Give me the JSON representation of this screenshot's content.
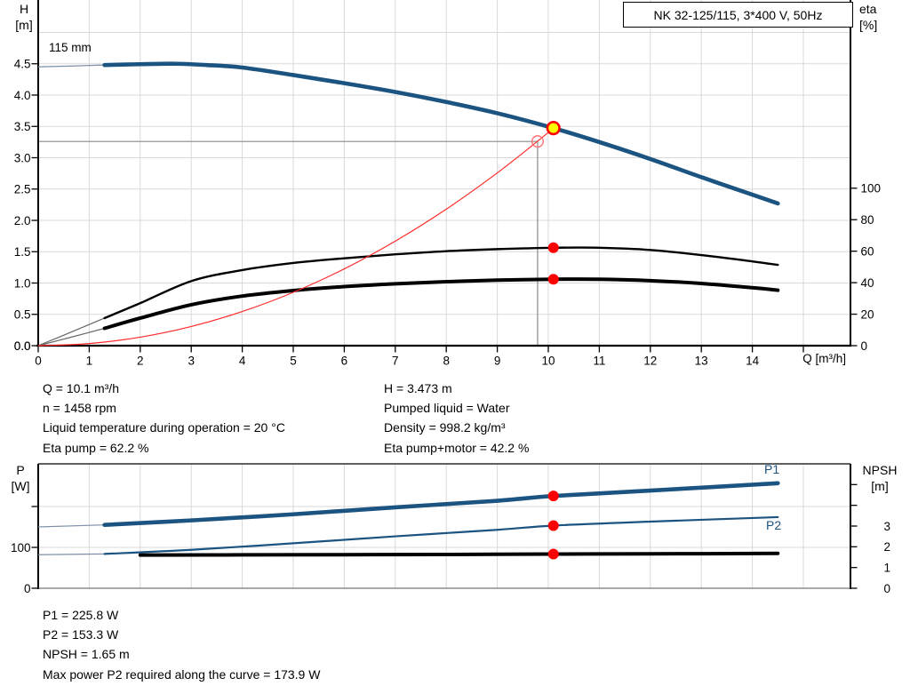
{
  "colors": {
    "curve_blue": "#1b5381",
    "thin_blue": "#7d90a8",
    "curve_black": "#000000",
    "thin_black": "#666666",
    "system_red": "#ff2a2a",
    "marker_red": "#ff0000",
    "duty_yellow": "#ffff00",
    "grid": "#d9d9d9",
    "axis": "#000000",
    "crosshair_gray": "#8a8a8a"
  },
  "operating_point_info": {
    "left": [
      "Q = 10.1 m³/h",
      "n = 1458 rpm",
      "Liquid temperature during operation = 20 °C",
      "Eta pump = 62.2 %"
    ],
    "right": [
      "H = 3.473 m",
      "Pumped liquid = Water",
      "Density = 998.2 kg/m³",
      "Eta pump+motor = 42.2 %"
    ]
  },
  "power_info": [
    "P1 = 225.8 W",
    "P2 = 153.3 W",
    "NPSH = 1.65 m",
    "Max power P2 required along the curve = 173.9 W"
  ],
  "chart_data": [
    {
      "id": "qh-eta-chart",
      "type": "line",
      "title": "NK 32-125/115, 3*400 V, 50Hz",
      "xlabel": "Q [m³/h]",
      "x_ticks": [
        {
          "v": 0,
          "label": "0"
        },
        {
          "v": 1,
          "label": "1"
        },
        {
          "v": 2,
          "label": "2"
        },
        {
          "v": 3,
          "label": "3"
        },
        {
          "v": 4,
          "label": "4"
        },
        {
          "v": 5,
          "label": "5"
        },
        {
          "v": 6,
          "label": "6"
        },
        {
          "v": 7,
          "label": "7"
        },
        {
          "v": 8,
          "label": "8"
        },
        {
          "v": 9,
          "label": "9"
        },
        {
          "v": 10,
          "label": "10"
        },
        {
          "v": 11,
          "label": "11"
        },
        {
          "v": 12,
          "label": "12"
        },
        {
          "v": 13,
          "label": "13"
        },
        {
          "v": 14,
          "label": "14"
        },
        {
          "v": 15,
          "label": ""
        }
      ],
      "y_left": {
        "name": "H",
        "unit": "[m]",
        "ticks": [
          {
            "v": 0,
            "label": "0.0"
          },
          {
            "v": 0.5,
            "label": "0.5"
          },
          {
            "v": 1,
            "label": "1.0"
          },
          {
            "v": 1.5,
            "label": "1.5"
          },
          {
            "v": 2,
            "label": "2.0"
          },
          {
            "v": 2.5,
            "label": "2.5"
          },
          {
            "v": 3,
            "label": "3.0"
          },
          {
            "v": 3.5,
            "label": "3.5"
          },
          {
            "v": 4,
            "label": "4.0"
          },
          {
            "v": 4.5,
            "label": "4.5"
          }
        ]
      },
      "y_right": {
        "name": "eta",
        "unit": "[%]",
        "ticks": [
          {
            "v": 0,
            "label": "0"
          },
          {
            "v": 20,
            "label": "20"
          },
          {
            "v": 40,
            "label": "40"
          },
          {
            "v": 60,
            "label": "60"
          },
          {
            "v": 80,
            "label": "80"
          },
          {
            "v": 100,
            "label": "100"
          }
        ]
      },
      "series": [
        {
          "name": "pump-curve-115mm",
          "axis": "left",
          "style": "blue_thick",
          "split_thin_until": 1.3,
          "points": [
            [
              0,
              4.45
            ],
            [
              0.7,
              4.465
            ],
            [
              1.3,
              4.48
            ],
            [
              2,
              4.493
            ],
            [
              2.7,
              4.5
            ],
            [
              3.3,
              4.48
            ],
            [
              4,
              4.44
            ],
            [
              5,
              4.32
            ],
            [
              6,
              4.19
            ],
            [
              7,
              4.05
            ],
            [
              8,
              3.89
            ],
            [
              9,
              3.71
            ],
            [
              10.1,
              3.473
            ],
            [
              11,
              3.25
            ],
            [
              12,
              2.98
            ],
            [
              13,
              2.69
            ],
            [
              14,
              2.41
            ],
            [
              14.5,
              2.27
            ]
          ]
        },
        {
          "name": "eta-pump-curve",
          "axis": "right",
          "style": "black_med",
          "split_thin_until": 1.3,
          "points": [
            [
              0,
              0
            ],
            [
              0.6,
              8
            ],
            [
              1.3,
              17.5
            ],
            [
              2,
              27
            ],
            [
              3,
              41
            ],
            [
              4,
              48
            ],
            [
              5,
              52.5
            ],
            [
              6,
              55.5
            ],
            [
              7,
              58
            ],
            [
              8,
              60
            ],
            [
              9,
              61.3
            ],
            [
              10.1,
              62.2
            ],
            [
              11,
              62.2
            ],
            [
              12,
              60.8
            ],
            [
              13,
              57.5
            ],
            [
              14,
              53.5
            ],
            [
              14.5,
              51.3
            ]
          ]
        },
        {
          "name": "eta-pump-motor-curve",
          "axis": "right",
          "style": "black_thick",
          "split_thin_until": 1.3,
          "points": [
            [
              0,
              0
            ],
            [
              0.6,
              5
            ],
            [
              1.3,
              11
            ],
            [
              2,
              17.5
            ],
            [
              3,
              26
            ],
            [
              4,
              31.5
            ],
            [
              5,
              35
            ],
            [
              6,
              37.5
            ],
            [
              7,
              39.3
            ],
            [
              8,
              40.6
            ],
            [
              9,
              41.6
            ],
            [
              10.1,
              42.2
            ],
            [
              11,
              42.2
            ],
            [
              12,
              41.3
            ],
            [
              13,
              39.5
            ],
            [
              14,
              36.8
            ],
            [
              14.5,
              35.2
            ]
          ]
        },
        {
          "name": "system-curve",
          "axis": "left",
          "style": "red_thin",
          "points": [
            [
              0,
              0
            ],
            [
              1,
              0.034
            ],
            [
              2,
              0.136
            ],
            [
              3,
              0.306
            ],
            [
              4,
              0.545
            ],
            [
              5,
              0.851
            ],
            [
              6,
              1.226
            ],
            [
              7,
              1.669
            ],
            [
              8,
              2.179
            ],
            [
              9,
              2.758
            ],
            [
              9.79,
              3.263
            ],
            [
              10.1,
              3.473
            ]
          ]
        }
      ],
      "markers": [
        {
          "kind": "crosshair",
          "q": 9.79,
          "value": 3.26,
          "axis": "left",
          "name": "crosshair-point"
        },
        {
          "kind": "dot",
          "q": 10.1,
          "value": 62.2,
          "axis": "right",
          "name": "eta-pump-point"
        },
        {
          "kind": "dot",
          "q": 10.1,
          "value": 42.2,
          "axis": "right",
          "name": "eta-pump-motor-point"
        },
        {
          "kind": "duty",
          "q": 10.1,
          "value": 3.473,
          "axis": "left",
          "name": "duty-point"
        }
      ],
      "annotations": [
        {
          "text": "115 mm"
        }
      ]
    },
    {
      "id": "power-npsh-chart",
      "type": "line",
      "y_left": {
        "name": "P",
        "unit": "[W]",
        "ticks": [
          {
            "v": 0,
            "label": "0"
          },
          {
            "v": 100,
            "label": "100"
          },
          {
            "v": 200,
            "label": ""
          }
        ]
      },
      "y_right": {
        "name": "NPSH",
        "unit": "[m]",
        "ticks": [
          {
            "v": 0,
            "label": "0"
          },
          {
            "v": 1,
            "label": "1"
          },
          {
            "v": 2,
            "label": "2"
          },
          {
            "v": 3,
            "label": "3"
          },
          {
            "v": 4,
            "label": ""
          },
          {
            "v": 5,
            "label": ""
          }
        ]
      },
      "series": [
        {
          "name": "P1-curve",
          "axis": "left",
          "style": "blue_thick",
          "split_thin_until": 1.3,
          "points": [
            [
              0,
              150
            ],
            [
              1.3,
              155
            ],
            [
              3,
              166
            ],
            [
              5,
              181
            ],
            [
              7,
              198
            ],
            [
              9,
              214
            ],
            [
              10.1,
              225.8
            ],
            [
              12,
              239
            ],
            [
              14.5,
              257
            ]
          ]
        },
        {
          "name": "P2-curve",
          "axis": "left",
          "style": "blue_med",
          "split_thin_until": 1.3,
          "points": [
            [
              0,
              82
            ],
            [
              1.3,
              84
            ],
            [
              3,
              94
            ],
            [
              5,
              110
            ],
            [
              7,
              127
            ],
            [
              9,
              143
            ],
            [
              10.1,
              153.3
            ],
            [
              12,
              163
            ],
            [
              14.5,
              174
            ]
          ]
        },
        {
          "name": "NPSH-curve",
          "axis": "right",
          "style": "black_thick",
          "split_thin_until": 1.3,
          "points": [
            [
              0,
              1.6
            ],
            [
              2,
              1.6
            ],
            [
              4,
              1.61
            ],
            [
              6,
              1.62
            ],
            [
              8,
              1.63
            ],
            [
              10.1,
              1.65
            ],
            [
              12,
              1.66
            ],
            [
              14.5,
              1.68
            ]
          ]
        }
      ],
      "markers": [
        {
          "kind": "dot",
          "q": 10.1,
          "value": 225.8,
          "axis": "left",
          "name": "p1-point"
        },
        {
          "kind": "dot",
          "q": 10.1,
          "value": 153.3,
          "axis": "left",
          "name": "p2-point"
        },
        {
          "kind": "dot",
          "q": 10.1,
          "value": 1.65,
          "axis": "right",
          "name": "npsh-point"
        }
      ],
      "annotations": [
        {
          "text": "P1"
        },
        {
          "text": "P2"
        }
      ]
    }
  ]
}
